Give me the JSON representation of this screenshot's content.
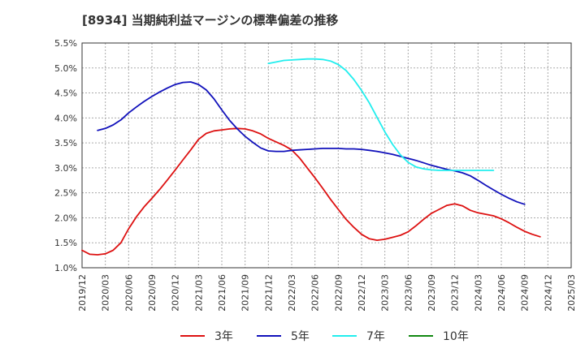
{
  "chart_data": {
    "type": "line",
    "title": "[8934]  当期純利益マージンの標準偏差の推移",
    "xlabel": "",
    "ylabel": "",
    "ylim": [
      1.0,
      5.5
    ],
    "y_ticks": [
      "1.0%",
      "1.5%",
      "2.0%",
      "2.5%",
      "3.0%",
      "3.5%",
      "4.0%",
      "4.5%",
      "5.0%",
      "5.5%"
    ],
    "x_ticks": [
      "2019/12",
      "2020/03",
      "2020/06",
      "2020/09",
      "2020/12",
      "2021/03",
      "2021/06",
      "2021/09",
      "2021/12",
      "2022/03",
      "2022/06",
      "2022/09",
      "2022/12",
      "2023/03",
      "2023/06",
      "2023/09",
      "2023/12",
      "2024/03",
      "2024/06",
      "2024/09",
      "2024/12",
      "2025/03"
    ],
    "grid": true,
    "legend_position": "bottom",
    "series": [
      {
        "name": "3年",
        "color": "#dd1111",
        "values": [
          1.35,
          1.27,
          1.26,
          1.28,
          1.35,
          1.5,
          1.78,
          2.02,
          2.22,
          2.39,
          2.57,
          2.76,
          2.96,
          3.16,
          3.36,
          3.57,
          3.69,
          3.74,
          3.76,
          3.78,
          3.79,
          3.78,
          3.74,
          3.68,
          3.59,
          3.52,
          3.45,
          3.36,
          3.2,
          3.0,
          2.8,
          2.59,
          2.37,
          2.17,
          1.97,
          1.81,
          1.67,
          1.58,
          1.55,
          1.57,
          1.61,
          1.65,
          1.72,
          1.84,
          1.97,
          2.09,
          2.17,
          2.25,
          2.28,
          2.24,
          2.15,
          2.1,
          2.07,
          2.04,
          1.98,
          1.9,
          1.81,
          1.73,
          1.67,
          1.62
        ]
      },
      {
        "name": "5年",
        "color": "#1111bb",
        "values": [
          null,
          null,
          3.75,
          3.79,
          3.86,
          3.96,
          4.1,
          4.22,
          4.33,
          4.43,
          4.52,
          4.6,
          4.67,
          4.71,
          4.72,
          4.67,
          4.56,
          4.38,
          4.16,
          3.95,
          3.78,
          3.63,
          3.51,
          3.4,
          3.34,
          3.33,
          3.33,
          3.35,
          3.36,
          3.37,
          3.38,
          3.39,
          3.39,
          3.39,
          3.38,
          3.38,
          3.37,
          3.35,
          3.33,
          3.3,
          3.27,
          3.23,
          3.19,
          3.15,
          3.1,
          3.05,
          3.01,
          2.97,
          2.94,
          2.9,
          2.84,
          2.75,
          2.65,
          2.56,
          2.47,
          2.39,
          2.32,
          2.27
        ]
      },
      {
        "name": "7年",
        "color": "#22eeee",
        "values": [
          null,
          null,
          null,
          null,
          null,
          null,
          null,
          null,
          null,
          null,
          null,
          null,
          null,
          null,
          null,
          null,
          null,
          null,
          null,
          null,
          null,
          null,
          null,
          null,
          5.09,
          5.12,
          5.15,
          5.16,
          5.17,
          5.18,
          5.18,
          5.17,
          5.14,
          5.07,
          4.95,
          4.77,
          4.55,
          4.3,
          4.01,
          3.72,
          3.47,
          3.26,
          3.11,
          3.02,
          2.98,
          2.96,
          2.95,
          2.95,
          2.95,
          2.95,
          2.95,
          2.95,
          2.95,
          2.95
        ]
      },
      {
        "name": "10年",
        "color": "#118811",
        "values": []
      }
    ]
  }
}
